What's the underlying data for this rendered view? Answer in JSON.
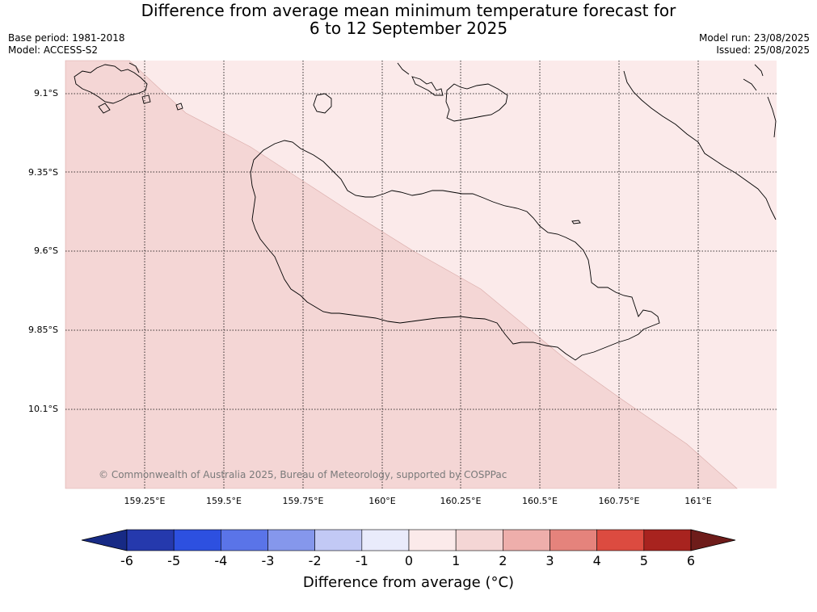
{
  "header": {
    "title_line1": "Difference from average mean minimum temperature forecast for",
    "title_line2": "6 to 12 September 2025",
    "base_period": "Base period: 1981-2018",
    "model": "Model: ACCESS-S2",
    "model_run": "Model run: 23/08/2025",
    "issued": "Issued: 25/08/2025"
  },
  "map": {
    "lat_labels": [
      "9.1°S",
      "9.35°S",
      "9.6°S",
      "9.85°S",
      "10.1°S"
    ],
    "lon_labels": [
      "159.25°E",
      "159.5°E",
      "159.75°E",
      "160°E",
      "160.25°E",
      "160.5°E",
      "160.75°E",
      "161°E"
    ],
    "copyright": "© Commonwealth of Australia 2025, Bureau of Meteorology, supported by COSPPac",
    "fill_colors": {
      "category_1_to_2": "#f4d6d5",
      "category_0_to_1": "#fbeaea"
    }
  },
  "colorbar": {
    "ticks": [
      "-6",
      "-5",
      "-4",
      "-3",
      "-2",
      "-1",
      "0",
      "1",
      "2",
      "3",
      "4",
      "5",
      "6"
    ],
    "colors": [
      "#172a85",
      "#2539ad",
      "#2d50e0",
      "#5a74e8",
      "#8597ec",
      "#c2c9f5",
      "#e9ebfb",
      "#fbeaea",
      "#f4d6d5",
      "#eeaeab",
      "#e5837c",
      "#dc4b40",
      "#a8231f",
      "#6e1c1a"
    ],
    "title": "Difference from average (°C)"
  }
}
